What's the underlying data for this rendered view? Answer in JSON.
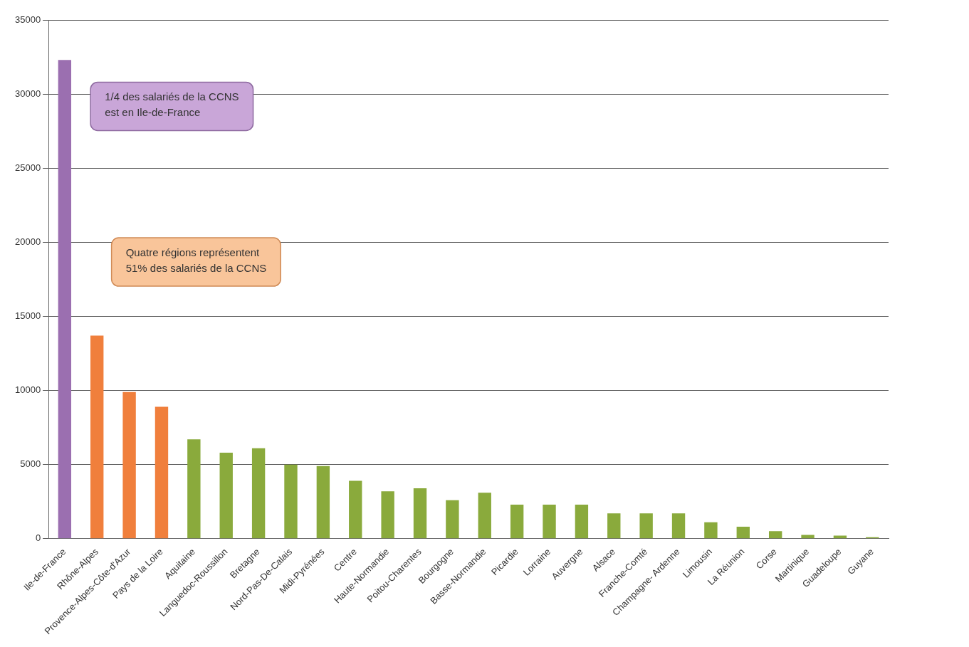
{
  "chart_data": {
    "type": "bar",
    "categories": [
      "Ile-de-France",
      "Rhône-Alpes",
      "Provence-Alpes-Côte-d'Azur",
      "Pays de la Loire",
      "Aquitaine",
      "Languedoc-Roussillon",
      "Bretagne",
      "Nord-Pas-De-Calais",
      "Midi-Pyrénées",
      "Centre",
      "Haute-Normandie",
      "Poitou-Charentes",
      "Bourgogne",
      "Basse-Normandie",
      "Picardie",
      "Lorraine",
      "Auvergne",
      "Alsace",
      "Franche-Comté",
      "Champagne- Ardenne",
      "Limousin",
      "La Réunion",
      "Corse",
      "Martinique",
      "Guadeloupe",
      "Guyane"
    ],
    "values": [
      32300,
      13700,
      9900,
      8900,
      6700,
      5800,
      6100,
      5000,
      4900,
      3900,
      3200,
      3400,
      2600,
      3100,
      2300,
      2300,
      2300,
      1700,
      1700,
      1700,
      1100,
      800,
      500,
      250,
      200,
      100
    ],
    "colors": [
      "#9b6fb0",
      "#f07f3c",
      "#f07f3c",
      "#f07f3c",
      "#8aaa3c",
      "#8aaa3c",
      "#8aaa3c",
      "#8aaa3c",
      "#8aaa3c",
      "#8aaa3c",
      "#8aaa3c",
      "#8aaa3c",
      "#8aaa3c",
      "#8aaa3c",
      "#8aaa3c",
      "#8aaa3c",
      "#8aaa3c",
      "#8aaa3c",
      "#8aaa3c",
      "#8aaa3c",
      "#8aaa3c",
      "#8aaa3c",
      "#8aaa3c",
      "#8aaa3c",
      "#8aaa3c",
      "#8aaa3c"
    ],
    "ylim": [
      0,
      35000
    ],
    "yticks": [
      0,
      5000,
      10000,
      15000,
      20000,
      25000,
      30000,
      35000
    ],
    "grid": "y",
    "legend": false,
    "annotations": [
      "1/4 des salariés de la CCNS\nest en Ile-de-France",
      "Quatre régions représentent\n51% des salariés de la CCNS"
    ]
  }
}
